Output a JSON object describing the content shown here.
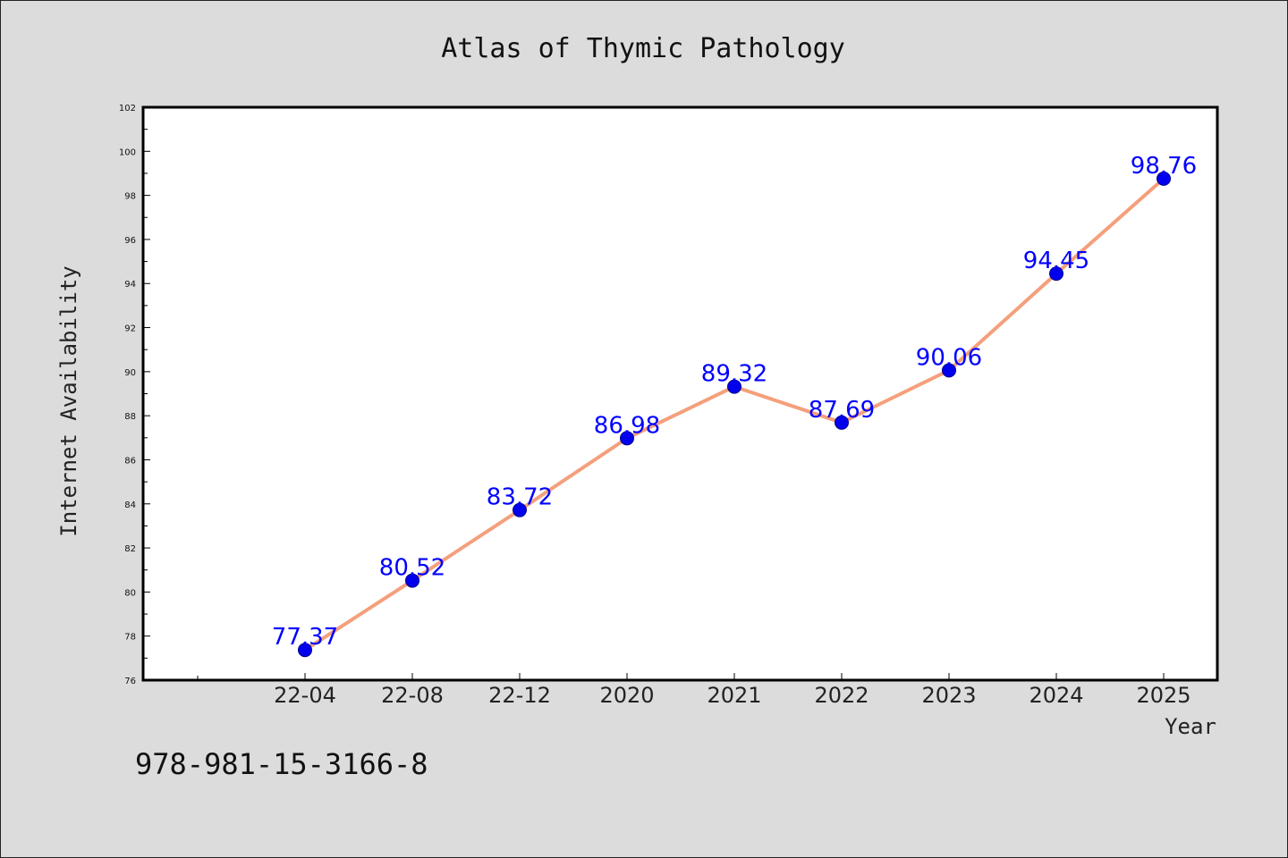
{
  "chart_data": {
    "type": "line",
    "title": "Atlas of Thymic Pathology",
    "xlabel": "Year",
    "ylabel": "Internet Availability",
    "categories": [
      "22-04",
      "22-08",
      "22-12",
      "2020",
      "2021",
      "2022",
      "2023",
      "2024",
      "2025"
    ],
    "series": [
      {
        "values": [
          77.37,
          80.52,
          83.72,
          86.98,
          89.32,
          87.69,
          90.06,
          94.45,
          98.76
        ],
        "line_color": "#f4a07c",
        "marker_color": "#0000ee",
        "label_color": "#0000ff"
      }
    ],
    "data_labels": [
      "77.37",
      "80.52",
      "83.72",
      "86.98",
      "89.32",
      "87.69",
      "90.06",
      "94.45",
      "98.76"
    ],
    "ylim": [
      76,
      102
    ],
    "ytick_step": 2,
    "yticks": [
      "76",
      "78",
      "80",
      "82",
      "84",
      "86",
      "88",
      "90",
      "92",
      "94",
      "96",
      "98",
      "100",
      "102"
    ],
    "grid": false,
    "legend": "none",
    "plot_background": "#ffffff",
    "figure_background": "#dcdcdc"
  },
  "footer": {
    "isbn": "978-981-15-3166-8"
  }
}
